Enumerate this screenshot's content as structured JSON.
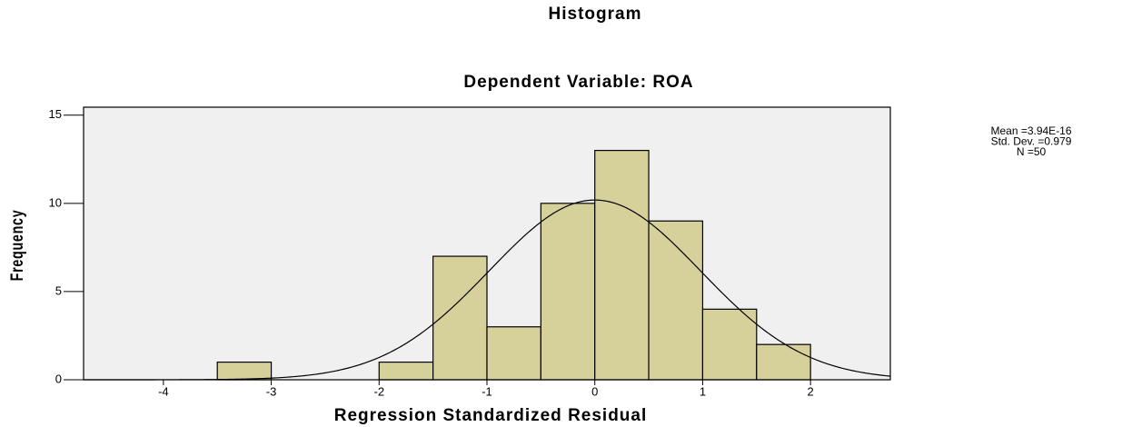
{
  "chart_data": {
    "type": "histogram",
    "title": "Histogram",
    "subtitle": "Dependent Variable: ROA",
    "x_label": "Regression Standardized Residual",
    "y_label": "Frequency",
    "bins": [
      -3.5,
      -3,
      -2.5,
      -2,
      -1.5,
      -1,
      -0.5,
      0,
      0.5,
      1,
      1.5,
      2
    ],
    "counts": [
      1,
      0,
      0,
      1,
      7,
      3,
      10,
      13,
      9,
      4,
      2
    ],
    "color": "#d6d09b",
    "xlim": [
      -4.74,
      2.74
    ],
    "xticks": [
      -4,
      -3,
      -2,
      -1,
      0,
      1,
      2
    ],
    "ylim": [
      0,
      15.45
    ],
    "yticks": [
      0,
      5,
      10,
      15
    ],
    "normal_curve": {
      "mean": 3.94e-16,
      "sd": 0.979,
      "n": 50
    },
    "stats": [
      "Mean =3.94E-16",
      "Std. Dev. =0.979",
      "N =50"
    ]
  }
}
